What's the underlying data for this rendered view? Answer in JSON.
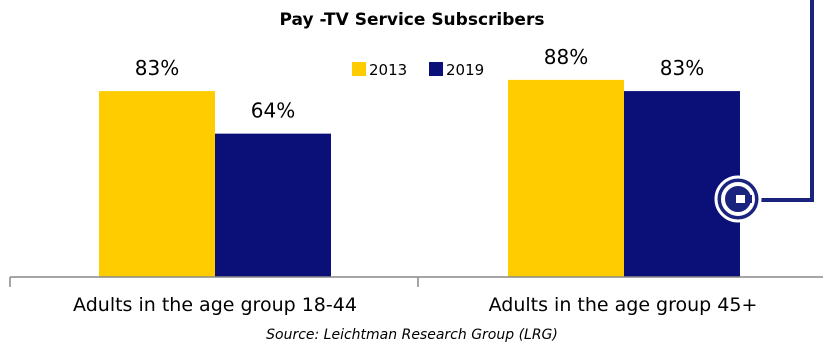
{
  "chart_data": {
    "type": "bar",
    "title": "Pay -TV Service Subscribers",
    "categories": [
      "Adults in the age group 18-44",
      "Adults in the age group 45+"
    ],
    "series": [
      {
        "name": "2013",
        "values": [
          83,
          88
        ],
        "labels": [
          "83%",
          "88%"
        ],
        "color": "#FFCC00"
      },
      {
        "name": "2019",
        "values": [
          64,
          83
        ],
        "labels": [
          "64%",
          "83%"
        ],
        "color": "#0B0F78"
      }
    ],
    "ylim": [
      0,
      100
    ],
    "legend_position": "top-center",
    "grid": false,
    "source": "Source: Leichtman Research Group (LRG)"
  },
  "decoration": {
    "connector_color": "#1A237E",
    "badge_icon": "circled-arrow-icon"
  }
}
